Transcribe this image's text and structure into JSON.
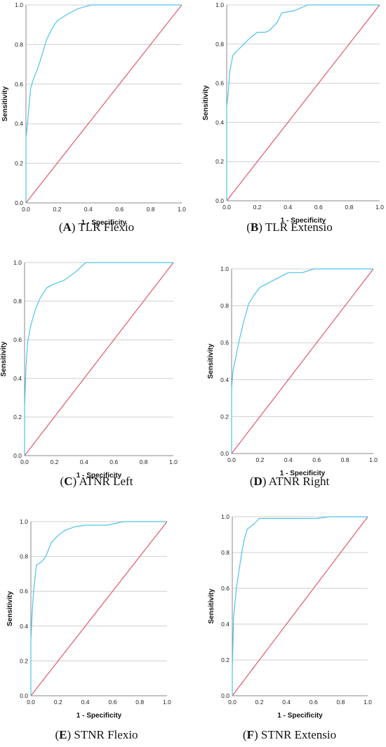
{
  "panels": [
    {
      "id": "A",
      "label": "A",
      "caption": " TLR Flexio",
      "chart_data": {
        "type": "line",
        "title": "",
        "xlabel": "1 - Specificity",
        "ylabel": "Sensitivity",
        "xlim": [
          0,
          1
        ],
        "ylim": [
          0,
          1
        ],
        "xticks": [
          "0.0",
          "0.2",
          "0.4",
          "0.6",
          "0.8",
          "1.0"
        ],
        "yticks": [
          "0.0",
          "0.2",
          "0.4",
          "0.6",
          "0.8",
          "1.0"
        ],
        "grid": "horizontal",
        "series": [
          {
            "color": "#4dc3ea",
            "x": [
              0,
              0,
              0.01,
              0.02,
              0.03,
              0.05,
              0.08,
              0.1,
              0.13,
              0.16,
              0.2,
              0.26,
              0.33,
              0.42,
              1.0
            ],
            "y": [
              0,
              0.33,
              0.4,
              0.49,
              0.58,
              0.63,
              0.69,
              0.74,
              0.82,
              0.87,
              0.92,
              0.95,
              0.98,
              1.0,
              1.0
            ]
          },
          {
            "color": "#e05a6c",
            "x": [
              0,
              1
            ],
            "y": [
              0,
              1
            ]
          }
        ]
      }
    },
    {
      "id": "B",
      "label": "B",
      "caption": " TLR Extensio",
      "chart_data": {
        "type": "line",
        "title": "",
        "xlabel": "1 - Specificity",
        "ylabel": "Sensitivity",
        "xlim": [
          0,
          1
        ],
        "ylim": [
          0,
          1
        ],
        "xticks": [
          "0.0",
          "0.2",
          "0.4",
          "0.6",
          "0.8",
          "1.0"
        ],
        "yticks": [
          "0.0",
          "0.2",
          "0.4",
          "0.6",
          "0.8",
          "1.0"
        ],
        "grid": "horizontal",
        "series": [
          {
            "color": "#4dc3ea",
            "x": [
              0,
              0,
              0.01,
              0.02,
              0.03,
              0.04,
              0.06,
              0.1,
              0.15,
              0.2,
              0.25,
              0.28,
              0.33,
              0.36,
              0.44,
              0.53,
              1.0
            ],
            "y": [
              0,
              0.48,
              0.55,
              0.66,
              0.7,
              0.74,
              0.76,
              0.79,
              0.83,
              0.86,
              0.86,
              0.87,
              0.91,
              0.96,
              0.97,
              1.0,
              1.0
            ]
          },
          {
            "color": "#e05a6c",
            "x": [
              0,
              1
            ],
            "y": [
              0,
              1
            ]
          }
        ]
      }
    },
    {
      "id": "C",
      "label": "C",
      "caption": " ATNR Left",
      "chart_data": {
        "type": "line",
        "title": "",
        "xlabel": "1 - Specificity",
        "ylabel": "Sensitivity",
        "xlim": [
          0,
          1
        ],
        "ylim": [
          0,
          1
        ],
        "xticks": [
          "0.0",
          "0.2",
          "0.4",
          "0.6",
          "0.8",
          "1.0"
        ],
        "yticks": [
          "0.0",
          "0.2",
          "0.4",
          "0.6",
          "0.8",
          "1.0"
        ],
        "grid": "horizontal",
        "series": [
          {
            "color": "#4dc3ea",
            "x": [
              0,
              0,
              0.01,
              0.02,
              0.04,
              0.07,
              0.1,
              0.15,
              0.2,
              0.27,
              0.34,
              0.41,
              1.0
            ],
            "y": [
              0,
              0.25,
              0.46,
              0.58,
              0.67,
              0.75,
              0.81,
              0.87,
              0.89,
              0.91,
              0.95,
              1.0,
              1.0
            ]
          },
          {
            "color": "#e05a6c",
            "x": [
              0,
              1
            ],
            "y": [
              0,
              1
            ]
          }
        ]
      }
    },
    {
      "id": "D",
      "label": "D",
      "caption": " ATNR Right",
      "chart_data": {
        "type": "line",
        "title": "",
        "xlabel": "1 - Specificity",
        "ylabel": "Sensitivity",
        "xlim": [
          0,
          1
        ],
        "ylim": [
          0,
          1
        ],
        "xticks": [
          "0.0",
          "0.2",
          "0.4",
          "0.6",
          "0.8",
          "1.0"
        ],
        "yticks": [
          "0.0",
          "0.2",
          "0.4",
          "0.6",
          "0.8",
          "1.0"
        ],
        "grid": "horizontal",
        "series": [
          {
            "color": "#4dc3ea",
            "x": [
              0,
              0,
              0.01,
              0.03,
              0.05,
              0.08,
              0.12,
              0.16,
              0.2,
              0.3,
              0.4,
              0.5,
              0.58,
              1.0
            ],
            "y": [
              0,
              0.35,
              0.45,
              0.52,
              0.6,
              0.7,
              0.81,
              0.86,
              0.9,
              0.94,
              0.98,
              0.98,
              1.0,
              1.0
            ]
          },
          {
            "color": "#e05a6c",
            "x": [
              0,
              1
            ],
            "y": [
              0,
              1
            ]
          }
        ]
      }
    },
    {
      "id": "E",
      "label": "E",
      "caption": " STNR Flexio",
      "chart_data": {
        "type": "line",
        "title": "",
        "xlabel": "1 - Specificity",
        "ylabel": "Sensitivity",
        "xlim": [
          0,
          1
        ],
        "ylim": [
          0,
          1
        ],
        "xticks": [
          "0.0",
          "0.2",
          "0.4",
          "0.6",
          "0.8",
          "1.0"
        ],
        "yticks": [
          "0.0",
          "0.2",
          "0.4",
          "0.6",
          "0.8",
          "1.0"
        ],
        "grid": "horizontal",
        "series": [
          {
            "color": "#4dc3ea",
            "x": [
              0,
              0,
              0.01,
              0.02,
              0.04,
              0.08,
              0.11,
              0.15,
              0.2,
              0.25,
              0.32,
              0.4,
              0.56,
              0.68,
              1.0
            ],
            "y": [
              0,
              0.32,
              0.48,
              0.6,
              0.75,
              0.77,
              0.8,
              0.88,
              0.92,
              0.95,
              0.97,
              0.98,
              0.98,
              1.0,
              1.0
            ]
          },
          {
            "color": "#e05a6c",
            "x": [
              0,
              1
            ],
            "y": [
              0,
              1
            ]
          }
        ]
      }
    },
    {
      "id": "F",
      "label": "F",
      "caption": " STNR Extensio",
      "chart_data": {
        "type": "line",
        "title": "",
        "xlabel": "1 - Specificity",
        "ylabel": "Sensitivity",
        "xlim": [
          0,
          1
        ],
        "ylim": [
          0,
          1
        ],
        "xticks": [
          "0.0",
          "0.2",
          "0.4",
          "0.6",
          "0.8",
          "1.0"
        ],
        "yticks": [
          "0.0",
          "0.2",
          "0.4",
          "0.6",
          "0.8",
          "1.0"
        ],
        "grid": "horizontal",
        "series": [
          {
            "color": "#4dc3ea",
            "x": [
              0,
              0,
              0.01,
              0.03,
              0.05,
              0.07,
              0.09,
              0.11,
              0.16,
              0.2,
              0.62,
              0.72,
              1.0
            ],
            "y": [
              0,
              0.15,
              0.44,
              0.6,
              0.7,
              0.8,
              0.88,
              0.93,
              0.96,
              0.99,
              0.99,
              1.0,
              1.0
            ]
          },
          {
            "color": "#e05a6c",
            "x": [
              0,
              1
            ],
            "y": [
              0,
              1
            ]
          }
        ]
      }
    }
  ]
}
